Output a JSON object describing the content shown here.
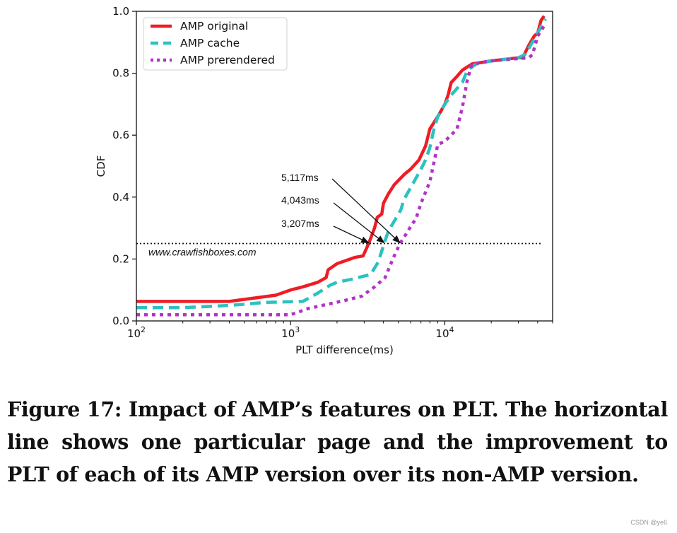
{
  "chart_data": {
    "type": "line",
    "xscale": "log",
    "xlim": [
      100,
      50000
    ],
    "ylim": [
      0,
      1
    ],
    "xlabel": "PLT difference(ms)",
    "ylabel": "CDF",
    "x_ticks": [
      {
        "base": "10",
        "exp": "2",
        "value": 100
      },
      {
        "base": "10",
        "exp": "3",
        "value": 1000
      },
      {
        "base": "10",
        "exp": "4",
        "value": 10000
      }
    ],
    "y_ticks": [
      "0.0",
      "0.2",
      "0.4",
      "0.6",
      "0.8",
      "1.0"
    ],
    "legend_position": "top-left",
    "series": [
      {
        "name": "AMP original",
        "color": "#ee1d25",
        "style": "solid",
        "points": [
          [
            100,
            0.063
          ],
          [
            200,
            0.063
          ],
          [
            400,
            0.063
          ],
          [
            800,
            0.083
          ],
          [
            1000,
            0.1
          ],
          [
            1200,
            0.11
          ],
          [
            1500,
            0.125
          ],
          [
            1700,
            0.14
          ],
          [
            1750,
            0.165
          ],
          [
            2000,
            0.185
          ],
          [
            2600,
            0.205
          ],
          [
            2950,
            0.21
          ],
          [
            3207,
            0.25
          ],
          [
            3500,
            0.3
          ],
          [
            3650,
            0.335
          ],
          [
            3900,
            0.345
          ],
          [
            4000,
            0.38
          ],
          [
            4300,
            0.41
          ],
          [
            4700,
            0.44
          ],
          [
            5500,
            0.475
          ],
          [
            6000,
            0.49
          ],
          [
            6800,
            0.52
          ],
          [
            7500,
            0.565
          ],
          [
            8000,
            0.62
          ],
          [
            9000,
            0.66
          ],
          [
            10000,
            0.7
          ],
          [
            10500,
            0.73
          ],
          [
            11000,
            0.77
          ],
          [
            12000,
            0.79
          ],
          [
            13000,
            0.81
          ],
          [
            15000,
            0.83
          ],
          [
            20000,
            0.84
          ],
          [
            30000,
            0.85
          ],
          [
            32000,
            0.85
          ],
          [
            35000,
            0.89
          ],
          [
            38000,
            0.92
          ],
          [
            40000,
            0.93
          ],
          [
            42000,
            0.97
          ],
          [
            44000,
            0.985
          ]
        ]
      },
      {
        "name": "AMP cache",
        "color": "#2cc1c0",
        "style": "dashed",
        "points": [
          [
            100,
            0.043
          ],
          [
            200,
            0.043
          ],
          [
            400,
            0.05
          ],
          [
            700,
            0.06
          ],
          [
            1200,
            0.063
          ],
          [
            1500,
            0.09
          ],
          [
            1800,
            0.115
          ],
          [
            2000,
            0.125
          ],
          [
            2500,
            0.135
          ],
          [
            3000,
            0.145
          ],
          [
            3300,
            0.15
          ],
          [
            3700,
            0.19
          ],
          [
            4043,
            0.25
          ],
          [
            4300,
            0.29
          ],
          [
            4800,
            0.33
          ],
          [
            5200,
            0.36
          ],
          [
            5400,
            0.39
          ],
          [
            6000,
            0.43
          ],
          [
            7000,
            0.49
          ],
          [
            7500,
            0.52
          ],
          [
            8000,
            0.56
          ],
          [
            8500,
            0.62
          ],
          [
            9000,
            0.66
          ],
          [
            10000,
            0.7
          ],
          [
            11000,
            0.73
          ],
          [
            13000,
            0.77
          ],
          [
            14000,
            0.81
          ],
          [
            16000,
            0.83
          ],
          [
            20000,
            0.84
          ],
          [
            30000,
            0.85
          ],
          [
            33000,
            0.86
          ],
          [
            35000,
            0.88
          ],
          [
            38000,
            0.91
          ],
          [
            42000,
            0.95
          ],
          [
            45000,
            0.975
          ]
        ]
      },
      {
        "name": "AMP prerendered",
        "color": "#b233c8",
        "style": "dotted",
        "points": [
          [
            100,
            0.02
          ],
          [
            500,
            0.02
          ],
          [
            1000,
            0.02
          ],
          [
            1100,
            0.027
          ],
          [
            1300,
            0.04
          ],
          [
            1600,
            0.05
          ],
          [
            2200,
            0.065
          ],
          [
            2900,
            0.08
          ],
          [
            3500,
            0.11
          ],
          [
            4100,
            0.14
          ],
          [
            4600,
            0.2
          ],
          [
            5117,
            0.25
          ],
          [
            5600,
            0.28
          ],
          [
            6100,
            0.31
          ],
          [
            6500,
            0.33
          ],
          [
            7000,
            0.38
          ],
          [
            8000,
            0.45
          ],
          [
            9000,
            0.57
          ],
          [
            10000,
            0.58
          ],
          [
            12000,
            0.62
          ],
          [
            13000,
            0.69
          ],
          [
            14000,
            0.78
          ],
          [
            15000,
            0.83
          ],
          [
            20000,
            0.84
          ],
          [
            35000,
            0.85
          ],
          [
            37000,
            0.86
          ],
          [
            40000,
            0.92
          ],
          [
            45000,
            0.96
          ]
        ]
      }
    ],
    "reference_line": {
      "y": 0.25,
      "x_from": 100,
      "x_to": 42000,
      "label": "www.crawfishboxes.com"
    },
    "annotations": [
      {
        "text": "5,117ms",
        "x": 5117,
        "y": 0.25
      },
      {
        "text": "4,043ms",
        "x": 4043,
        "y": 0.25
      },
      {
        "text": "3,207ms",
        "x": 3207,
        "y": 0.25
      }
    ]
  },
  "caption": "Figure 17: Impact of AMP’s features on PLT. The horizontal line shows one particular page and the improvement to PLT of each of its AMP version over its non-AMP version.",
  "credit": "CSDN @ye6"
}
